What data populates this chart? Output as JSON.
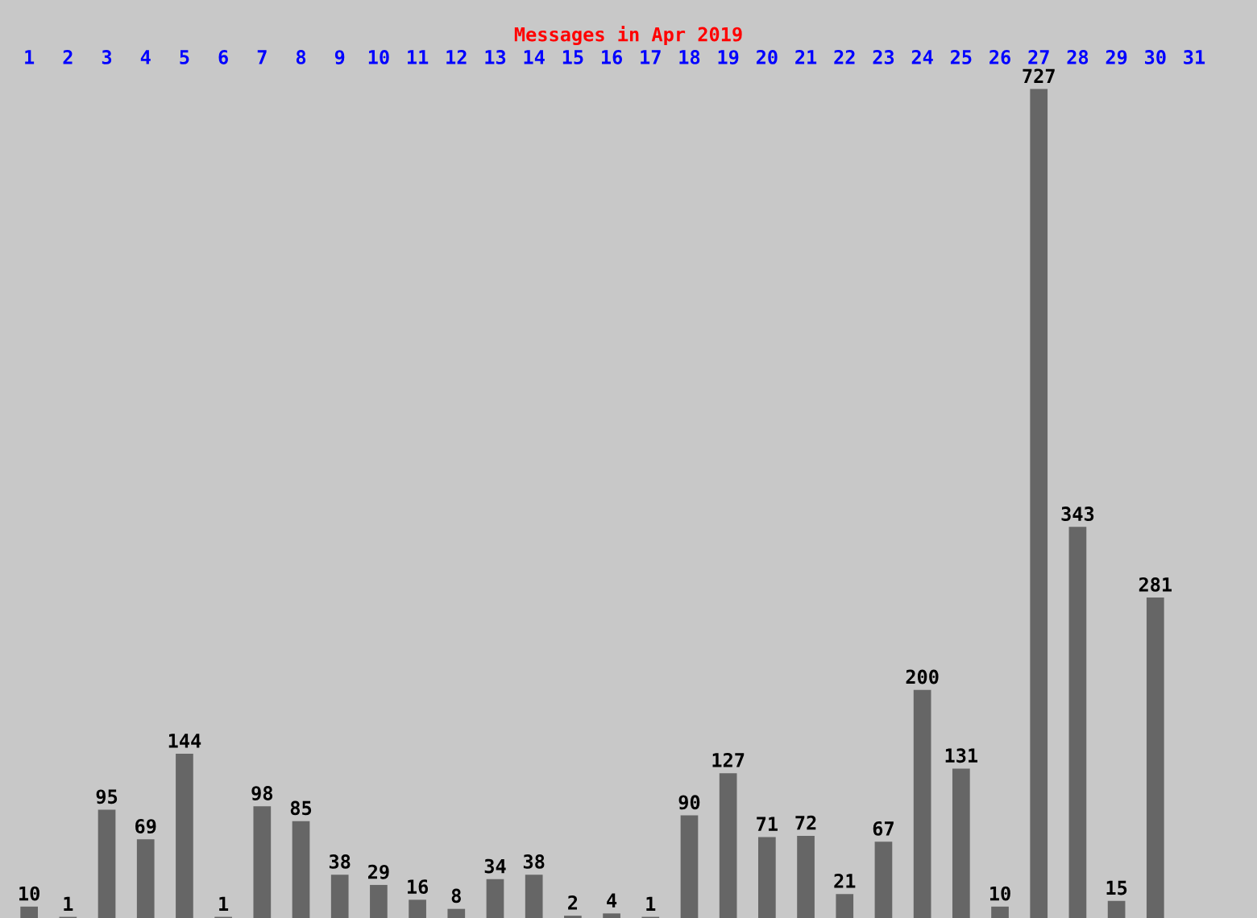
{
  "chart_data": {
    "type": "bar",
    "title": "Messages in Apr 2019",
    "categories": [
      "1",
      "2",
      "3",
      "4",
      "5",
      "6",
      "7",
      "8",
      "9",
      "10",
      "11",
      "12",
      "13",
      "14",
      "15",
      "16",
      "17",
      "18",
      "19",
      "20",
      "21",
      "22",
      "23",
      "24",
      "25",
      "26",
      "27",
      "28",
      "29",
      "30",
      "31"
    ],
    "values": [
      10,
      1,
      95,
      69,
      144,
      1,
      98,
      85,
      38,
      29,
      16,
      8,
      34,
      38,
      2,
      4,
      1,
      90,
      127,
      71,
      72,
      21,
      67,
      200,
      131,
      10,
      727,
      343,
      15,
      281,
      null
    ],
    "color": "#666666",
    "data_labels": true,
    "grid": false,
    "legend": false
  }
}
